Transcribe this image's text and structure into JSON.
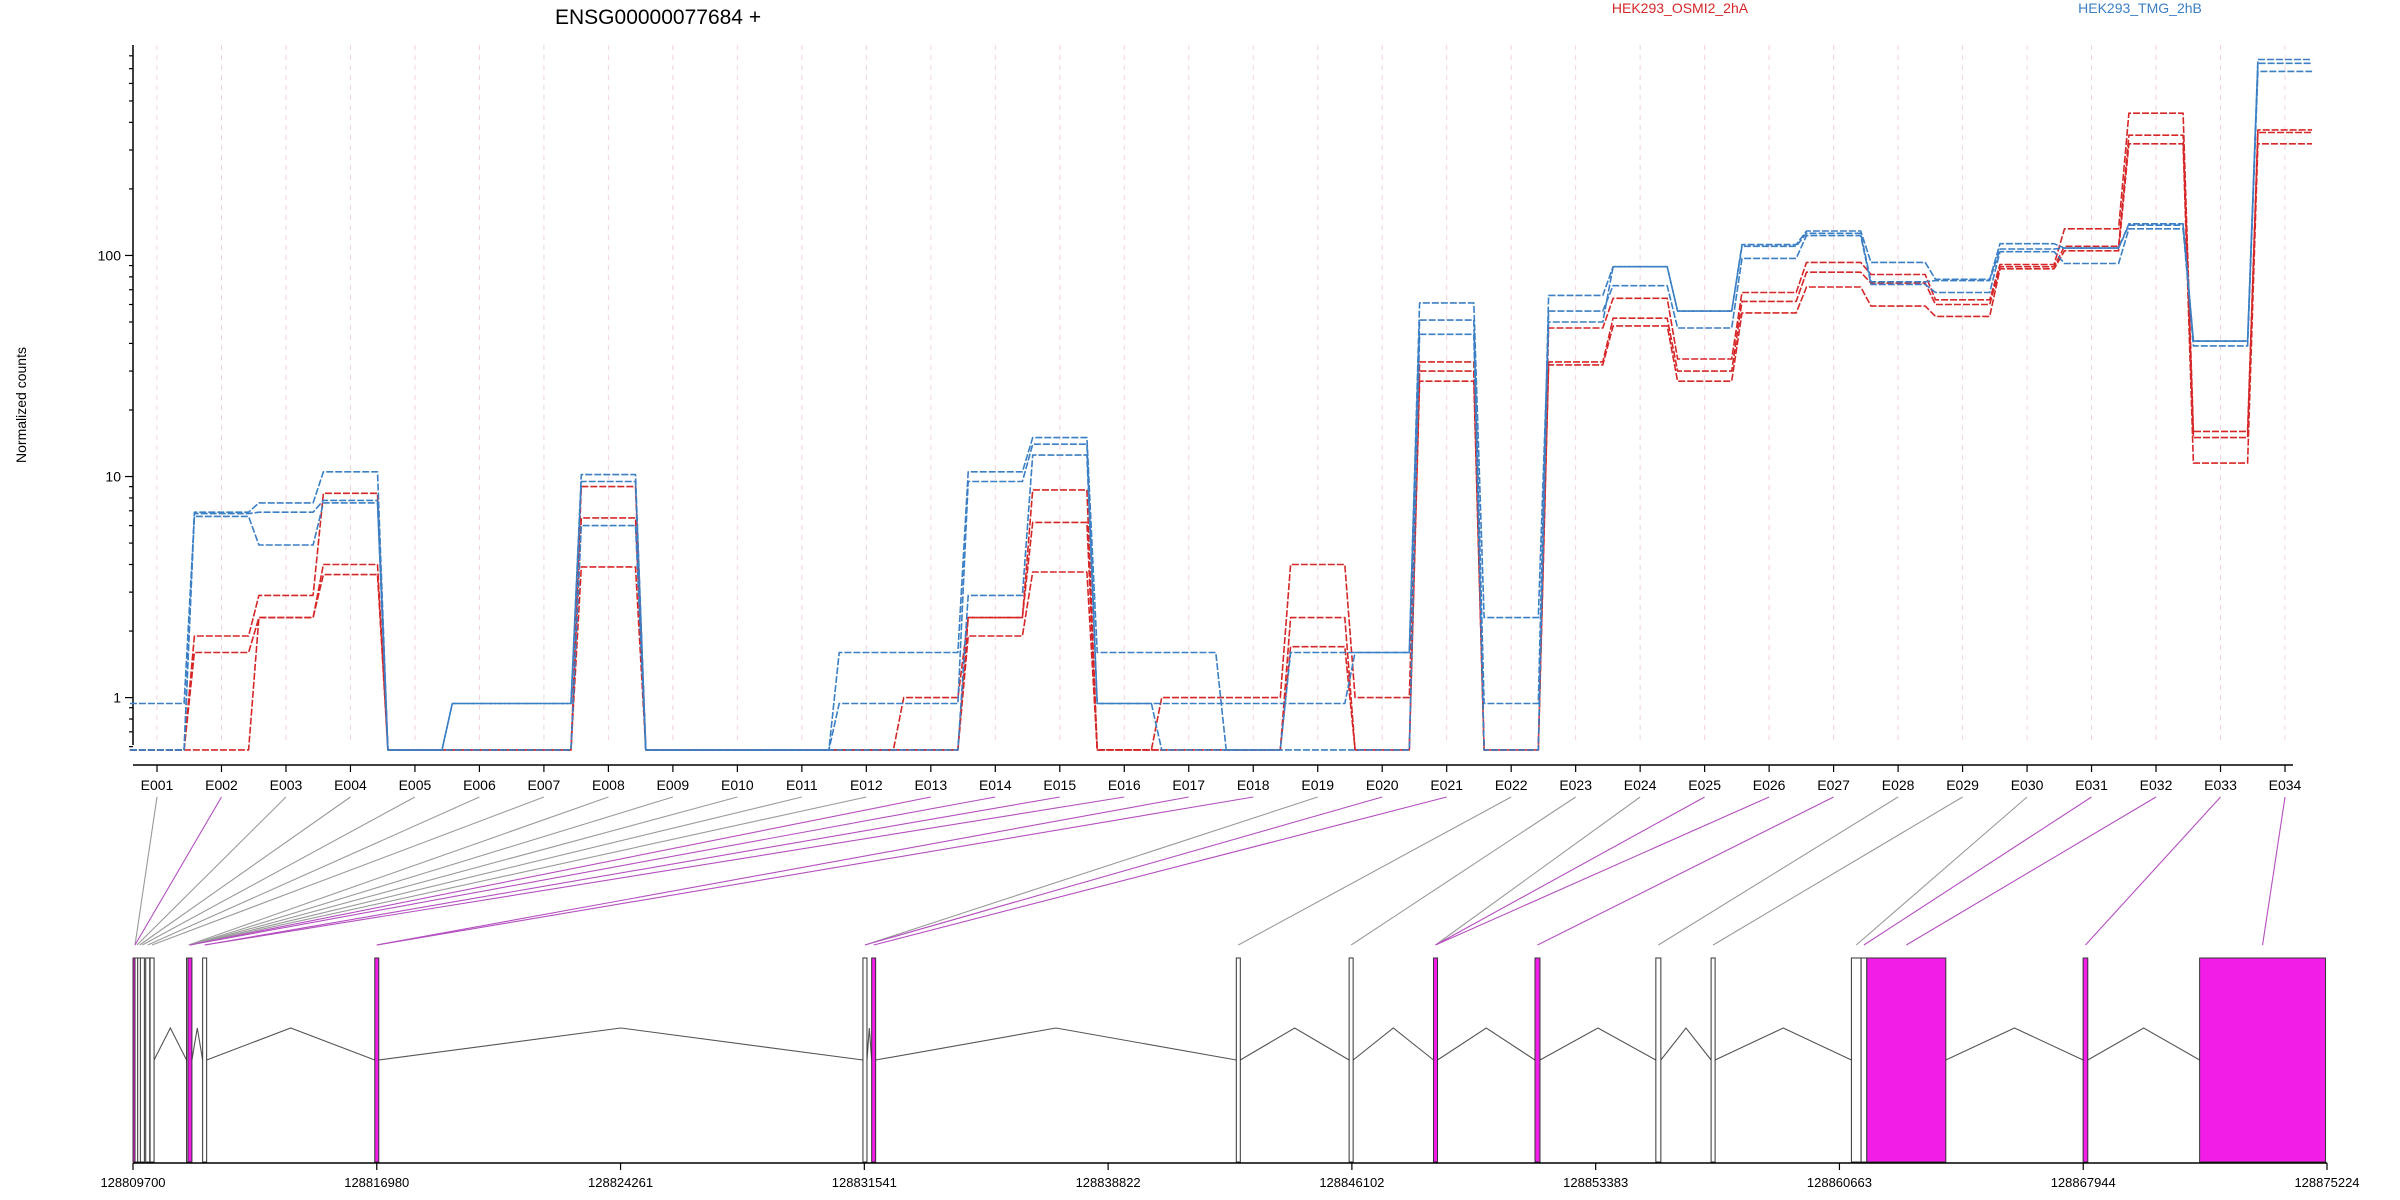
{
  "chart_data": {
    "type": "line",
    "title": "ENSG00000077684 +",
    "ylabel": "Normalized counts",
    "yscale": "log",
    "ylim": [
      0.55,
      850
    ],
    "yticks": [
      {
        "value": 1,
        "label": "1"
      },
      {
        "value": 10,
        "label": "10"
      },
      {
        "value": 100,
        "label": "100"
      }
    ],
    "categories": [
      "E001",
      "E002",
      "E003",
      "E004",
      "E005",
      "E006",
      "E007",
      "E008",
      "E009",
      "E010",
      "E011",
      "E012",
      "E013",
      "E014",
      "E015",
      "E016",
      "E017",
      "E018",
      "E019",
      "E020",
      "E021",
      "E022",
      "E023",
      "E024",
      "E025",
      "E026",
      "E027",
      "E028",
      "E029",
      "E030",
      "E031",
      "E032",
      "E033",
      "E034"
    ],
    "legend": [
      {
        "label": "HEK293_OSMI2_2hA",
        "color": "#d62728"
      },
      {
        "label": "HEK293_TMG_2hB",
        "color": "#3b7fc4"
      }
    ],
    "series": [
      {
        "group": "HEK293_OSMI2_2hA",
        "color": "#d62728",
        "values": [
          0.58,
          0.58,
          2.3,
          3.6,
          0.58,
          0.58,
          0.58,
          3.9,
          0.58,
          0.58,
          0.58,
          0.58,
          0.58,
          1.9,
          3.7,
          0.58,
          0.58,
          0.58,
          1.7,
          0.58,
          27,
          0.58,
          32,
          48,
          27,
          55,
          72,
          59,
          53,
          87,
          105,
          320,
          11.5,
          320
        ]
      },
      {
        "group": "HEK293_OSMI2_2hA",
        "color": "#d62728",
        "values": [
          0.58,
          1.6,
          2.3,
          4.0,
          0.58,
          0.58,
          0.58,
          6.5,
          0.58,
          0.58,
          0.58,
          0.58,
          0.58,
          2.3,
          6.2,
          0.58,
          0.58,
          0.58,
          2.3,
          0.58,
          30,
          0.58,
          33,
          52,
          30,
          62,
          84,
          75,
          60,
          89,
          110,
          350,
          15,
          360
        ]
      },
      {
        "group": "HEK293_OSMI2_2hA",
        "color": "#d62728",
        "values": [
          0.58,
          1.9,
          2.9,
          8.4,
          0.58,
          0.58,
          0.58,
          9.0,
          0.58,
          0.58,
          0.58,
          0.58,
          1.0,
          2.3,
          8.7,
          0.58,
          1.0,
          1.0,
          4.0,
          1.0,
          33,
          0.58,
          47,
          64,
          34,
          68,
          93,
          82,
          63,
          91,
          132,
          440,
          16,
          370
        ]
      },
      {
        "group": "HEK293_TMG_2hB",
        "color": "#3b7fc4",
        "values": [
          0.94,
          6.6,
          4.9,
          7.6,
          0.58,
          0.58,
          0.58,
          6.0,
          0.58,
          0.58,
          0.58,
          0.58,
          0.58,
          2.9,
          12.5,
          0.94,
          0.58,
          0.58,
          0.58,
          0.58,
          44,
          0.58,
          56,
          73,
          47,
          97,
          123,
          74,
          68,
          104,
          92,
          132,
          39,
          680
        ]
      },
      {
        "group": "HEK293_TMG_2hB",
        "color": "#3b7fc4",
        "values": [
          0.58,
          6.8,
          6.9,
          7.8,
          0.58,
          0.94,
          0.94,
          9.5,
          0.58,
          0.58,
          0.58,
          0.94,
          0.94,
          9.5,
          14,
          0.94,
          0.94,
          0.94,
          0.94,
          1.6,
          51,
          0.94,
          66,
          89,
          56,
          110,
          126,
          76,
          77,
          107,
          108,
          137,
          41,
          740
        ]
      },
      {
        "group": "HEK293_TMG_2hB",
        "color": "#3b7fc4",
        "values": [
          0.58,
          6.9,
          7.6,
          10.5,
          0.58,
          0.94,
          0.94,
          10.2,
          0.58,
          0.58,
          0.58,
          1.6,
          1.6,
          10.5,
          15,
          1.6,
          1.6,
          0.58,
          1.6,
          1.6,
          61,
          2.3,
          50,
          89,
          56,
          112,
          129,
          93,
          78,
          113,
          108,
          139,
          41,
          770
        ]
      }
    ],
    "genomic_axis": {
      "ticks": [
        "128809700",
        "128816980",
        "128824261",
        "128831541",
        "128838822",
        "128846102",
        "128853383",
        "128860663",
        "128867944",
        "128875224"
      ]
    },
    "gene_model": {
      "exons": [
        {
          "start": 128809700,
          "end": 128809760,
          "highlighted": true
        },
        {
          "start": 128809760,
          "end": 128809800,
          "highlighted": false
        },
        {
          "start": 128809840,
          "end": 128809900,
          "highlighted": false
        },
        {
          "start": 128809920,
          "end": 128810000,
          "highlighted": false
        },
        {
          "start": 128810080,
          "end": 128810160,
          "highlighted": false
        },
        {
          "start": 128810210,
          "end": 128810290,
          "highlighted": false
        },
        {
          "start": 128811300,
          "end": 128811340,
          "highlighted": false
        },
        {
          "start": 128811340,
          "end": 128811440,
          "highlighted": true
        },
        {
          "start": 128811780,
          "end": 128811900,
          "highlighted": false
        },
        {
          "start": 128816920,
          "end": 128817040,
          "highlighted": true
        },
        {
          "start": 128831500,
          "end": 128831620,
          "highlighted": false
        },
        {
          "start": 128831760,
          "end": 128831860,
          "highlighted": true
        },
        {
          "start": 128842650,
          "end": 128842760,
          "highlighted": false
        },
        {
          "start": 128846020,
          "end": 128846130,
          "highlighted": false
        },
        {
          "start": 128848540,
          "end": 128848660,
          "highlighted": true
        },
        {
          "start": 128851570,
          "end": 128851720,
          "highlighted": true
        },
        {
          "start": 128855180,
          "end": 128855330,
          "highlighted": false
        },
        {
          "start": 128856830,
          "end": 128856930,
          "highlighted": false
        },
        {
          "start": 128861020,
          "end": 128861310,
          "highlighted": false
        },
        {
          "start": 128861310,
          "end": 128861480,
          "highlighted": false
        },
        {
          "start": 128861480,
          "end": 128863840,
          "highlighted": true
        },
        {
          "start": 128867940,
          "end": 128868080,
          "highlighted": true
        },
        {
          "start": 128871420,
          "end": 128875180,
          "highlighted": true
        }
      ],
      "exon_map": [
        {
          "bin": "E001",
          "exon": 0,
          "highlighted": false
        },
        {
          "bin": "E002",
          "exon": 0,
          "highlighted": true
        },
        {
          "bin": "E003",
          "exon": 1,
          "highlighted": false
        },
        {
          "bin": "E004",
          "exon": 2,
          "highlighted": false
        },
        {
          "bin": "E005",
          "exon": 3,
          "highlighted": false
        },
        {
          "bin": "E006",
          "exon": 4,
          "highlighted": false
        },
        {
          "bin": "E007",
          "exon": 5,
          "highlighted": false
        },
        {
          "bin": "E008",
          "exon": 6,
          "highlighted": false
        },
        {
          "bin": "E009",
          "exon": 7,
          "highlighted": false
        },
        {
          "bin": "E010",
          "exon": 7,
          "highlighted": false
        },
        {
          "bin": "E011",
          "exon": 7,
          "highlighted": false
        },
        {
          "bin": "E012",
          "exon": 7,
          "highlighted": false
        },
        {
          "bin": "E013",
          "exon": 7,
          "highlighted": true
        },
        {
          "bin": "E014",
          "exon": 7,
          "highlighted": true
        },
        {
          "bin": "E015",
          "exon": 8,
          "highlighted": true
        },
        {
          "bin": "E016",
          "exon": 8,
          "highlighted": true
        },
        {
          "bin": "E017",
          "exon": 9,
          "highlighted": true
        },
        {
          "bin": "E018",
          "exon": 9,
          "highlighted": true
        },
        {
          "bin": "E019",
          "exon": 10,
          "highlighted": false
        },
        {
          "bin": "E020",
          "exon": 10,
          "highlighted": true
        },
        {
          "bin": "E021",
          "exon": 11,
          "highlighted": true
        },
        {
          "bin": "E022",
          "exon": 12,
          "highlighted": false
        },
        {
          "bin": "E023",
          "exon": 13,
          "highlighted": false
        },
        {
          "bin": "E024",
          "exon": 14,
          "highlighted": false
        },
        {
          "bin": "E025",
          "exon": 14,
          "highlighted": true
        },
        {
          "bin": "E026",
          "exon": 14,
          "highlighted": true
        },
        {
          "bin": "E027",
          "exon": 15,
          "highlighted": true
        },
        {
          "bin": "E028",
          "exon": 16,
          "highlighted": false
        },
        {
          "bin": "E029",
          "exon": 17,
          "highlighted": false
        },
        {
          "bin": "E030",
          "exon": 18,
          "highlighted": false
        },
        {
          "bin": "E031",
          "exon": 19,
          "highlighted": true
        },
        {
          "bin": "E032",
          "exon": 20,
          "highlighted": true
        },
        {
          "bin": "E033",
          "exon": 21,
          "highlighted": true
        },
        {
          "bin": "E034",
          "exon": 22,
          "highlighted": true
        }
      ]
    },
    "colors": {
      "highlight_exon": "#f21ee8",
      "plain_exon": "#ffffff",
      "connector_plain": "#9a9a9a",
      "connector_highlight": "#b54fc0"
    }
  }
}
